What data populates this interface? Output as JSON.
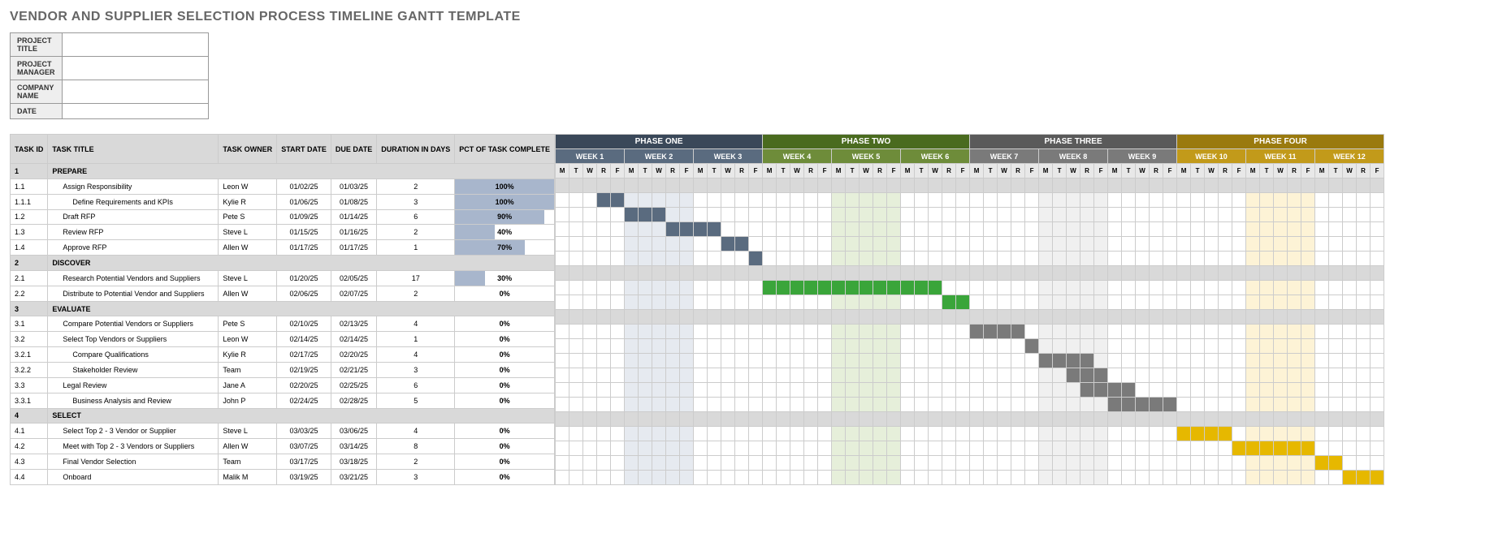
{
  "title": "VENDOR AND SUPPLIER SELECTION PROCESS TIMELINE GANTT TEMPLATE",
  "meta": {
    "labels": [
      "PROJECT TITLE",
      "PROJECT MANAGER",
      "COMPANY NAME",
      "DATE"
    ],
    "values": [
      "",
      "",
      "",
      ""
    ]
  },
  "columns": [
    "TASK ID",
    "TASK TITLE",
    "TASK OWNER",
    "START DATE",
    "DUE DATE",
    "DURATION IN DAYS",
    "PCT OF TASK COMPLETE"
  ],
  "phases": [
    {
      "name": "PHASE ONE",
      "weeks": [
        "WEEK 1",
        "WEEK 2",
        "WEEK 3"
      ],
      "cls": "1"
    },
    {
      "name": "PHASE TWO",
      "weeks": [
        "WEEK 4",
        "WEEK 5",
        "WEEK 6"
      ],
      "cls": "2"
    },
    {
      "name": "PHASE THREE",
      "weeks": [
        "WEEK 7",
        "WEEK 8",
        "WEEK 9"
      ],
      "cls": "3"
    },
    {
      "name": "PHASE FOUR",
      "weeks": [
        "WEEK 10",
        "WEEK 11",
        "WEEK 12"
      ],
      "cls": "4"
    }
  ],
  "days": [
    "M",
    "T",
    "W",
    "R",
    "F"
  ],
  "rows": [
    {
      "section": true,
      "id": "1",
      "title": "PREPARE"
    },
    {
      "id": "1.1",
      "indent": 1,
      "title": "Assign Responsibility",
      "owner": "Leon W",
      "start": "01/02/25",
      "due": "01/03/25",
      "dur": "2",
      "pct": 100,
      "bar": [
        [
          3,
          4,
          1
        ]
      ]
    },
    {
      "id": "1.1.1",
      "indent": 2,
      "title": "Define Requirements and KPIs",
      "owner": "Kylie R",
      "start": "01/06/25",
      "due": "01/08/25",
      "dur": "3",
      "pct": 100,
      "bar": [
        [
          5,
          7,
          1
        ]
      ]
    },
    {
      "id": "1.2",
      "indent": 1,
      "title": "Draft RFP",
      "owner": "Pete S",
      "start": "01/09/25",
      "due": "01/14/25",
      "dur": "6",
      "pct": 90,
      "bar": [
        [
          8,
          11,
          1
        ]
      ]
    },
    {
      "id": "1.3",
      "indent": 1,
      "title": "Review RFP",
      "owner": "Steve L",
      "start": "01/15/25",
      "due": "01/16/25",
      "dur": "2",
      "pct": 40,
      "bar": [
        [
          12,
          13,
          1
        ]
      ]
    },
    {
      "id": "1.4",
      "indent": 1,
      "title": "Approve RFP",
      "owner": "Allen W",
      "start": "01/17/25",
      "due": "01/17/25",
      "dur": "1",
      "pct": 70,
      "bar": [
        [
          14,
          14,
          1
        ]
      ]
    },
    {
      "section": true,
      "id": "2",
      "title": "DISCOVER"
    },
    {
      "id": "2.1",
      "indent": 1,
      "title": "Research Potential Vendors and Suppliers",
      "owner": "Steve L",
      "start": "01/20/25",
      "due": "02/05/25",
      "dur": "17",
      "pct": 30,
      "bar": [
        [
          15,
          27,
          2
        ]
      ]
    },
    {
      "id": "2.2",
      "indent": 1,
      "title": "Distribute to Potential Vendor and Suppliers",
      "owner": "Allen W",
      "start": "02/06/25",
      "due": "02/07/25",
      "dur": "2",
      "pct": 0,
      "bar": [
        [
          28,
          29,
          2
        ]
      ]
    },
    {
      "section": true,
      "id": "3",
      "title": "EVALUATE"
    },
    {
      "id": "3.1",
      "indent": 1,
      "title": "Compare Potential Vendors or Suppliers",
      "owner": "Pete S",
      "start": "02/10/25",
      "due": "02/13/25",
      "dur": "4",
      "pct": 0,
      "bar": [
        [
          30,
          33,
          3
        ]
      ]
    },
    {
      "id": "3.2",
      "indent": 1,
      "title": "Select Top Vendors or Suppliers",
      "owner": "Leon W",
      "start": "02/14/25",
      "due": "02/14/25",
      "dur": "1",
      "pct": 0,
      "bar": [
        [
          34,
          34,
          3
        ]
      ]
    },
    {
      "id": "3.2.1",
      "indent": 2,
      "title": "Compare Qualifications",
      "owner": "Kylie R",
      "start": "02/17/25",
      "due": "02/20/25",
      "dur": "4",
      "pct": 0,
      "bar": [
        [
          35,
          38,
          3
        ]
      ]
    },
    {
      "id": "3.2.2",
      "indent": 2,
      "title": "Stakeholder Review",
      "owner": "Team",
      "start": "02/19/25",
      "due": "02/21/25",
      "dur": "3",
      "pct": 0,
      "bar": [
        [
          37,
          39,
          3
        ]
      ]
    },
    {
      "id": "3.3",
      "indent": 1,
      "title": "Legal Review",
      "owner": "Jane A",
      "start": "02/20/25",
      "due": "02/25/25",
      "dur": "6",
      "pct": 0,
      "bar": [
        [
          38,
          41,
          3
        ]
      ]
    },
    {
      "id": "3.3.1",
      "indent": 2,
      "title": "Business Analysis and Review",
      "owner": "John P",
      "start": "02/24/25",
      "due": "02/28/25",
      "dur": "5",
      "pct": 0,
      "bar": [
        [
          40,
          44,
          3
        ]
      ]
    },
    {
      "section": true,
      "id": "4",
      "title": "SELECT"
    },
    {
      "id": "4.1",
      "indent": 1,
      "title": "Select Top 2 - 3 Vendor or Supplier",
      "owner": "Steve L",
      "start": "03/03/25",
      "due": "03/06/25",
      "dur": "4",
      "pct": 0,
      "bar": [
        [
          45,
          48,
          4
        ]
      ]
    },
    {
      "id": "4.2",
      "indent": 1,
      "title": "Meet with Top 2 - 3 Vendors or Suppliers",
      "owner": "Allen W",
      "start": "03/07/25",
      "due": "03/14/25",
      "dur": "8",
      "pct": 0,
      "bar": [
        [
          49,
          54,
          4
        ]
      ]
    },
    {
      "id": "4.3",
      "indent": 1,
      "title": "Final Vendor Selection",
      "owner": "Team",
      "start": "03/17/25",
      "due": "03/18/25",
      "dur": "2",
      "pct": 0,
      "bar": [
        [
          55,
          56,
          4
        ]
      ]
    },
    {
      "id": "4.4",
      "indent": 1,
      "title": "Onboard",
      "owner": "Malik M",
      "start": "03/19/25",
      "due": "03/21/25",
      "dur": "3",
      "pct": 0,
      "bar": [
        [
          57,
          59,
          4
        ]
      ]
    }
  ]
}
